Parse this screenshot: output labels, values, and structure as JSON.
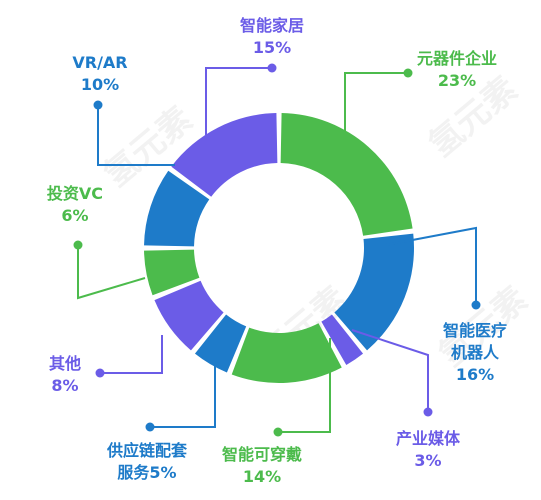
{
  "watermark": "氢元素",
  "chart_data": {
    "type": "pie",
    "style": "donut",
    "slices": [
      {
        "label": "元器件企业",
        "value": 23,
        "value_text": "23%",
        "color": "#4cbb4c"
      },
      {
        "label": "智能医疗机器人",
        "label_lines": [
          "智能医疗",
          "机器人"
        ],
        "value": 16,
        "value_text": "16%",
        "color": "#1e7bc9"
      },
      {
        "label": "产业媒体",
        "value": 3,
        "value_text": "3%",
        "color": "#6b5ce7"
      },
      {
        "label": "智能可穿戴",
        "value": 14,
        "value_text": "14%",
        "color": "#4cbb4c"
      },
      {
        "label": "供应链配套服务",
        "label_lines": [
          "供应链配套",
          "服务5%"
        ],
        "value": 5,
        "value_text": "",
        "color": "#1e7bc9"
      },
      {
        "label": "其他",
        "value": 8,
        "value_text": "8%",
        "color": "#6b5ce7"
      },
      {
        "label": "投资VC",
        "value": 6,
        "value_text": "6%",
        "color": "#4cbb4c"
      },
      {
        "label": "VR/AR",
        "value": 10,
        "value_text": "10%",
        "color": "#1e7bc9"
      },
      {
        "label": "智能家居",
        "value": 15,
        "value_text": "15%",
        "color": "#6b5ce7"
      }
    ]
  }
}
